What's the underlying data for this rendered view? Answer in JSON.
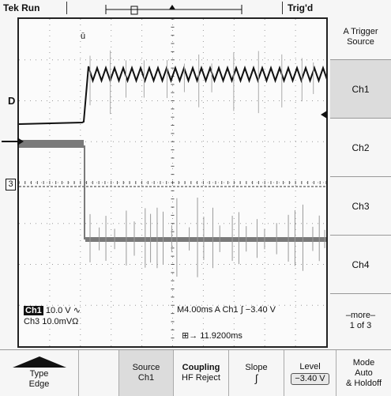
{
  "status": {
    "run": "Tek Run",
    "trigger": "Trig'd"
  },
  "side_menu": {
    "title": "A Trigger Source",
    "buttons": [
      "Ch1",
      "Ch2",
      "Ch3",
      "Ch4"
    ],
    "selected": "Ch1",
    "more_label": "–more–",
    "more_page": "1 of 3"
  },
  "bottom_menu": {
    "type_label": "Type",
    "type_value": "Edge",
    "source_label": "Source",
    "source_value": "Ch1",
    "coupling_label": "Coupling",
    "coupling_value": "HF Reject",
    "slope_label": "Slope",
    "slope_value": "∫",
    "level_label": "Level",
    "level_value": "−3.40 V",
    "mode_label": "Mode",
    "mode_value": "Auto",
    "mode_value2": "& Holdoff"
  },
  "readouts": {
    "ch1_label": "Ch1",
    "ch1_scale": "10.0 V ∿",
    "ch3_label": "Ch3",
    "ch3_scale": "10.0mVΩ",
    "timebase": "M4.00ms A  Ch1  ∫  −3.40 V",
    "cursor_time": "11.9200ms"
  },
  "markers": {
    "d_marker": "D",
    "ch3_marker": "3"
  },
  "colors": {
    "trace_black": "#111111",
    "trace_gray": "#7a7a7a",
    "grid": "#9a9a9a"
  }
}
